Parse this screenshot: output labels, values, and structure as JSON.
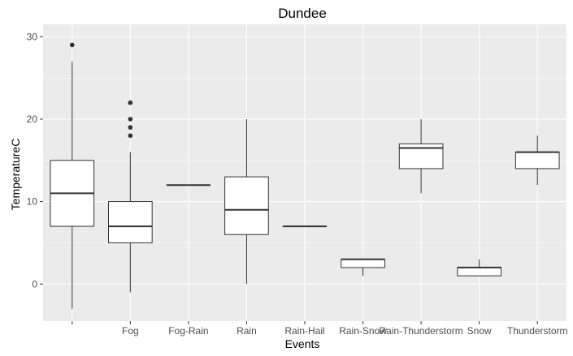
{
  "chart_data": {
    "type": "boxplot",
    "title": "Dundee",
    "xlabel": "Events",
    "ylabel": "TemperatureC",
    "ylim": [
      -4.5,
      31.5
    ],
    "yticks": [
      0,
      10,
      20,
      30
    ],
    "grid": true,
    "categories": [
      "",
      "Fog",
      "Fog-Rain",
      "Rain",
      "Rain-Hail",
      "Rain-Snow",
      "Rain-Thunderstorm",
      "Snow",
      "Thunderstorm"
    ],
    "boxes": [
      {
        "category": "",
        "min": -3,
        "q1": 7,
        "median": 11,
        "q3": 15,
        "max": 27,
        "outliers": [
          29
        ]
      },
      {
        "category": "Fog",
        "min": -1,
        "q1": 5,
        "median": 7,
        "q3": 10,
        "max": 16,
        "outliers": [
          18,
          19,
          20,
          22
        ]
      },
      {
        "category": "Fog-Rain",
        "min": 12,
        "q1": 12,
        "median": 12,
        "q3": 12,
        "max": 12,
        "outliers": []
      },
      {
        "category": "Rain",
        "min": 0,
        "q1": 6,
        "median": 9,
        "q3": 13,
        "max": 20,
        "outliers": []
      },
      {
        "category": "Rain-Hail",
        "min": 7,
        "q1": 7,
        "median": 7,
        "q3": 7,
        "max": 7,
        "outliers": []
      },
      {
        "category": "Rain-Snow",
        "min": 1,
        "q1": 2,
        "median": 3,
        "q3": 3,
        "max": 3,
        "outliers": []
      },
      {
        "category": "Rain-Thunderstorm",
        "min": 11,
        "q1": 14,
        "median": 16.5,
        "q3": 17,
        "max": 20,
        "outliers": []
      },
      {
        "category": "Snow",
        "min": 1,
        "q1": 1,
        "median": 2,
        "q3": 2,
        "max": 3,
        "outliers": []
      },
      {
        "category": "Thunderstorm",
        "min": 12,
        "q1": 14,
        "median": 16,
        "q3": 16,
        "max": 18,
        "outliers": []
      }
    ],
    "colors": {
      "panel_bg": "#ebebeb",
      "grid_major": "#ffffff",
      "box_fill": "#ffffff",
      "box_stroke": "#333333",
      "tick_text": "#4d4d4d"
    }
  }
}
